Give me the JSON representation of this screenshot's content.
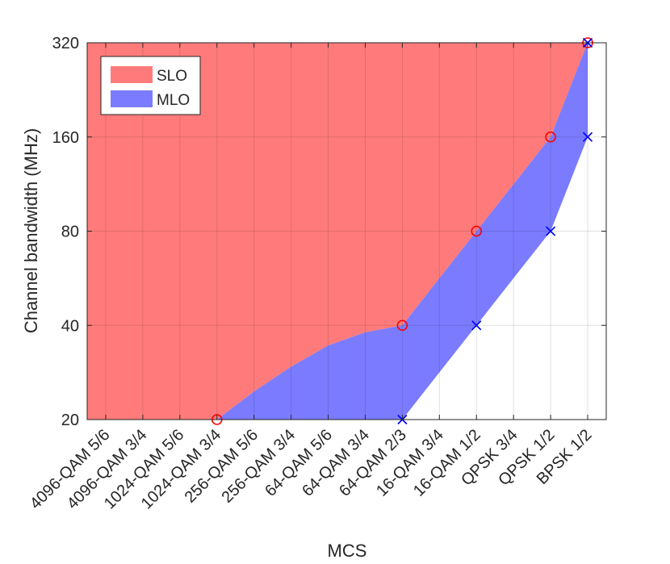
{
  "chart_data": {
    "type": "area",
    "xlabel": "MCS",
    "ylabel": "Channel bandwidth (MHz)",
    "categories": [
      "4096-QAM 5/6",
      "4096-QAM 3/4",
      "1024-QAM 5/6",
      "1024-QAM 3/4",
      "256-QAM 5/6",
      "256-QAM 3/4",
      "64-QAM 5/6",
      "64-QAM 3/4",
      "64-QAM 2/3",
      "16-QAM 3/4",
      "16-QAM 1/2",
      "QPSK 3/4",
      "QPSK 1/2",
      "BPSK 1/2"
    ],
    "y_scale": "log2",
    "yticks": [
      20,
      40,
      80,
      160,
      320
    ],
    "ytick_labels": [
      "20",
      "40",
      "80",
      "160",
      "320"
    ],
    "ylim": [
      20,
      320
    ],
    "grid": true,
    "legend_position": "top-left",
    "series": [
      {
        "name": "SLO",
        "color": "#ff7b7b",
        "marker": "circle",
        "marker_color": "#ff0000",
        "boundary": [
          20,
          20,
          20,
          20,
          24.6,
          29.5,
          34.5,
          38.0,
          40,
          56.6,
          80,
          113,
          160,
          320
        ],
        "markers": [
          {
            "category": "1024-QAM 3/4",
            "value": 20
          },
          {
            "category": "64-QAM 2/3",
            "value": 40
          },
          {
            "category": "16-QAM 1/2",
            "value": 80
          },
          {
            "category": "QPSK 1/2",
            "value": 160
          },
          {
            "category": "BPSK 1/2",
            "value": 320
          }
        ]
      },
      {
        "name": "MLO",
        "color": "#7b7bff",
        "marker": "x",
        "marker_color": "#0000ff",
        "boundary": [
          null,
          null,
          null,
          null,
          null,
          null,
          null,
          null,
          20,
          28.3,
          40,
          56.6,
          80,
          160
        ],
        "markers": [
          {
            "category": "64-QAM 2/3",
            "value": 20
          },
          {
            "category": "16-QAM 1/2",
            "value": 40
          },
          {
            "category": "QPSK 1/2",
            "value": 80
          },
          {
            "category": "BPSK 1/2",
            "value": 160
          },
          {
            "category": "BPSK 1/2",
            "value": 320
          }
        ]
      }
    ]
  }
}
